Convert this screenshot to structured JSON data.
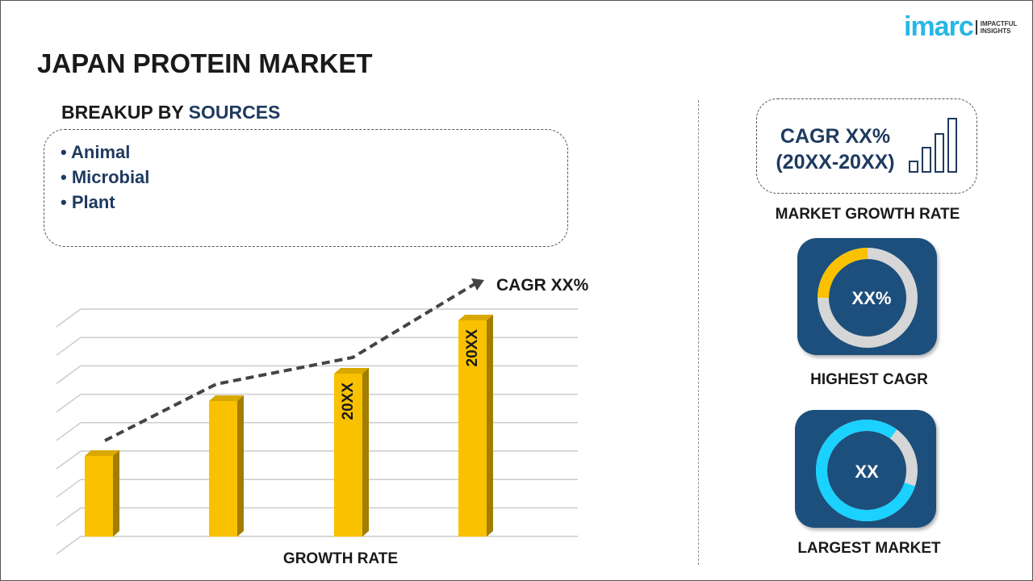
{
  "logo": {
    "brand": "imarc",
    "tagline_1": "IMPACTFUL",
    "tagline_2": "INSIGHTS"
  },
  "title": "JAPAN PROTEIN MARKET",
  "breakup": {
    "prefix": "BREAKUP BY ",
    "accent": "SOURCES",
    "items": [
      "Animal",
      "Microbial",
      "Plant"
    ]
  },
  "chart": {
    "cagr_label": "CAGR XX%",
    "bar_labels": [
      "20XX",
      "20XX"
    ],
    "xlabel": "GROWTH RATE",
    "bar_color": "#f9c100",
    "trend_color": "#444444"
  },
  "growth": {
    "line1": "CAGR XX%",
    "line2": "(20XX-20XX)",
    "label": "MARKET GROWTH RATE"
  },
  "highest": {
    "value": "XX%",
    "label": "HIGHEST CAGR",
    "share_pct": 25,
    "accent": "#f9c100"
  },
  "largest": {
    "value": "XX",
    "label": "LARGEST MARKET",
    "share_pct": 80,
    "accent": "#1ad1ff"
  },
  "colors": {
    "card": "#1d4f7c",
    "text_accent": "#1f3a5f"
  }
}
